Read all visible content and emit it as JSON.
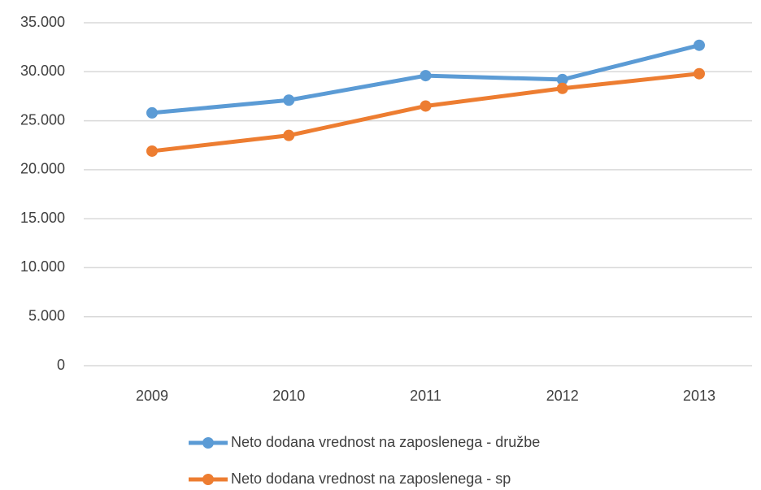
{
  "chart_data": {
    "type": "line",
    "categories": [
      "2009",
      "2010",
      "2011",
      "2012",
      "2013"
    ],
    "series": [
      {
        "name": "Neto dodana vrednost na zaposlenega - družbe",
        "color": "#5b9bd5",
        "values": [
          25800,
          27100,
          29600,
          29200,
          32700
        ]
      },
      {
        "name": "Neto dodana vrednost na zaposlenega - sp",
        "color": "#ed7d31",
        "values": [
          21900,
          23500,
          26500,
          28300,
          29800
        ]
      }
    ],
    "ylim": [
      0,
      35000
    ],
    "yticks": [
      0,
      {
        "value": 5000,
        "label": "5.000"
      },
      {
        "value": 10000,
        "label": "10.000"
      },
      {
        "value": 15000,
        "label": "15.000"
      },
      {
        "value": 20000,
        "label": "20.000"
      },
      {
        "value": 25000,
        "label": "25.000"
      },
      {
        "value": 30000,
        "label": "30.000"
      },
      {
        "value": 35000,
        "label": "35.000"
      }
    ],
    "grid": true,
    "legend": "bottom"
  }
}
